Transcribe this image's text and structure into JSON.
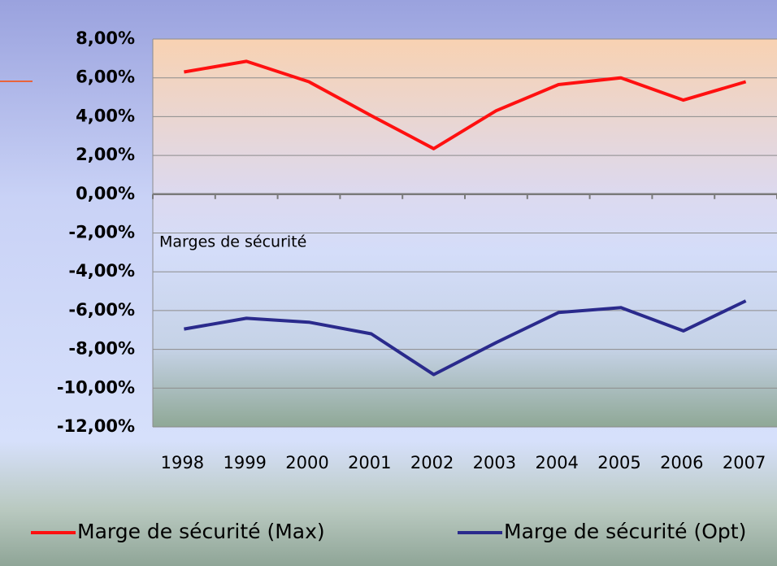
{
  "chart_data": {
    "type": "line",
    "annotation": "Marges de sécurité",
    "categories": [
      "1998",
      "1999",
      "2000",
      "2001",
      "2002",
      "2003",
      "2004",
      "2005",
      "2006",
      "2007"
    ],
    "series": [
      {
        "name": "Marge de sécurité (Max)",
        "color": "#ff1010",
        "values": [
          6.3,
          6.85,
          5.8,
          4.05,
          2.35,
          4.3,
          5.65,
          6.0,
          4.85,
          5.8
        ]
      },
      {
        "name": "Marge de sécurité (Opt)",
        "color": "#2a2a8c",
        "values": [
          -6.95,
          -6.4,
          -6.6,
          -7.2,
          -9.3,
          -7.65,
          -6.1,
          -5.85,
          -7.05,
          -5.5
        ]
      }
    ],
    "ylim": [
      -12,
      8
    ],
    "yticks": [
      {
        "value": 8,
        "label": "8,00%"
      },
      {
        "value": 6,
        "label": "6,00%"
      },
      {
        "value": 4,
        "label": "4,00%"
      },
      {
        "value": 2,
        "label": "2,00%"
      },
      {
        "value": 0,
        "label": "0,00%"
      },
      {
        "value": -2,
        "label": "-2,00%"
      },
      {
        "value": -4,
        "label": "-4,00%"
      },
      {
        "value": -6,
        "label": "-6,00%"
      },
      {
        "value": -8,
        "label": "-8,00%"
      },
      {
        "value": -10,
        "label": "-10,00%"
      },
      {
        "value": -12,
        "label": "-12,00%"
      }
    ],
    "grid": true,
    "legend": "bottom"
  }
}
